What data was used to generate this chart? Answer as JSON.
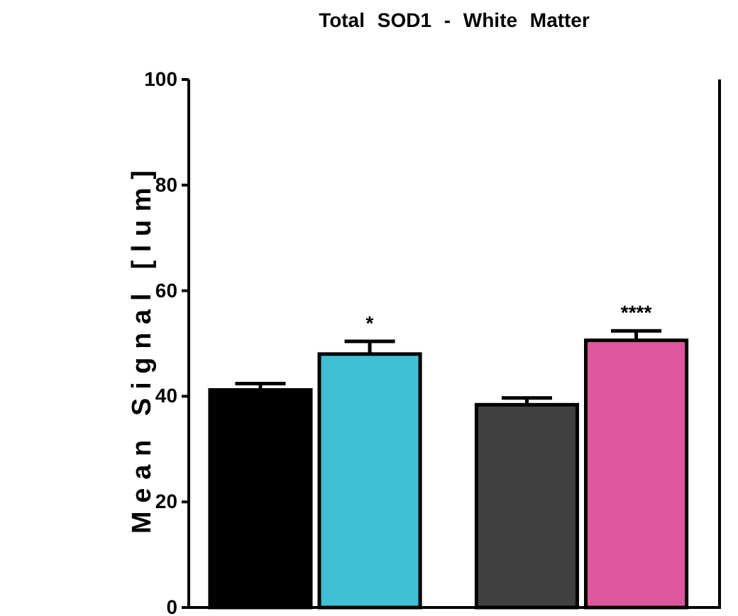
{
  "chart_data": {
    "type": "bar",
    "title": "Total SOD1 - White Matter",
    "ylabel": "Mean Signal [lum]",
    "categories": [
      null,
      null,
      null,
      null
    ],
    "values": [
      41.2,
      48.0,
      38.4,
      50.6
    ],
    "colors": [
      "#000000",
      "#41bfd4",
      "#404040",
      "#dd579e"
    ],
    "errors": [
      [
        41.2,
        42.4
      ],
      [
        48.0,
        50.4
      ],
      [
        38.4,
        39.7
      ],
      [
        50.6,
        52.4
      ]
    ],
    "value_labels": [
      null,
      "*",
      null,
      "****"
    ],
    "ylim": [
      0,
      100
    ],
    "yticks": [
      0,
      20,
      40,
      60,
      80,
      100
    ],
    "grid": false
  }
}
